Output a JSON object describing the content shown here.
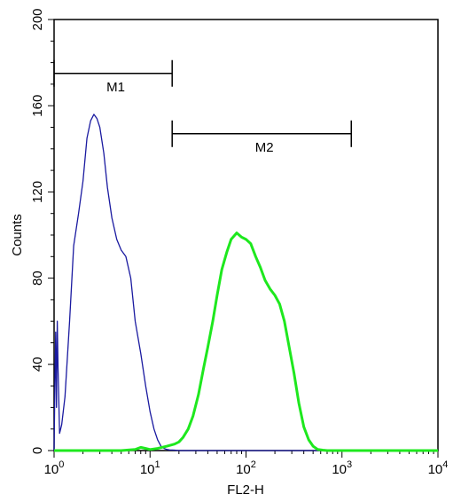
{
  "chart_data": {
    "type": "line",
    "xlabel": "FL2-H",
    "ylabel": "Counts",
    "x_scale": "log",
    "xlim": [
      1,
      10000
    ],
    "ylim": [
      0,
      200
    ],
    "x_ticks": [
      {
        "value": 1,
        "base": "10",
        "exp": "0"
      },
      {
        "value": 10,
        "base": "10",
        "exp": "1"
      },
      {
        "value": 100,
        "base": "10",
        "exp": "2"
      },
      {
        "value": 1000,
        "base": "10",
        "exp": "3"
      },
      {
        "value": 10000,
        "base": "10",
        "exp": "4"
      }
    ],
    "y_ticks": [
      "0",
      "40",
      "80",
      "120",
      "160",
      "200"
    ],
    "grid": false,
    "series": [
      {
        "color": "#1a1aa0",
        "x": [
          1.0,
          1.02,
          1.04,
          1.06,
          1.08,
          1.1,
          1.14,
          1.2,
          1.3,
          1.45,
          1.6,
          1.8,
          2.0,
          2.2,
          2.4,
          2.6,
          2.8,
          3.0,
          3.3,
          3.6,
          4.0,
          4.5,
          5.0,
          5.6,
          6.3,
          7.0,
          8.0,
          9.0,
          10.0,
          11.0,
          12.0,
          13.0,
          14.0,
          15.0,
          16.0,
          18.0,
          20.0,
          25.0,
          35.0,
          100.0,
          1000.0,
          10000.0
        ],
        "y": [
          0,
          30,
          55,
          20,
          60,
          38,
          8,
          12,
          25,
          60,
          95,
          110,
          125,
          145,
          153,
          156,
          154,
          150,
          138,
          122,
          108,
          98,
          93,
          90,
          80,
          60,
          45,
          30,
          18,
          10,
          5,
          2,
          1,
          0.5,
          0.3,
          0.2,
          0,
          0,
          0,
          0,
          0,
          0
        ]
      },
      {
        "color": "#1ee81e",
        "x": [
          1.0,
          5.0,
          7.0,
          8.0,
          9.0,
          10.0,
          12.0,
          15.0,
          18.0,
          20.0,
          22.0,
          25.0,
          28.0,
          32.0,
          36.0,
          40.0,
          45.0,
          50.0,
          56.0,
          63.0,
          70.0,
          80.0,
          90.0,
          100.0,
          112.0,
          126.0,
          141.0,
          158.0,
          178.0,
          200.0,
          224.0,
          251.0,
          282.0,
          316.0,
          355.0,
          400.0,
          450.0,
          500.0,
          560.0,
          630.0,
          700.0,
          800.0,
          1000.0,
          10000.0
        ],
        "y": [
          0,
          0,
          0.5,
          1.5,
          1,
          0.5,
          1,
          2,
          3,
          4,
          6,
          10,
          16,
          26,
          38,
          48,
          60,
          72,
          84,
          92,
          98,
          101,
          99,
          98,
          96,
          90,
          85,
          79,
          75,
          72,
          68,
          60,
          48,
          36,
          22,
          11,
          5,
          2,
          0.5,
          0.2,
          0,
          0,
          0,
          0
        ]
      }
    ],
    "markers": [
      {
        "label": "M1",
        "x_start": 1,
        "x_end": 17,
        "y": 175
      },
      {
        "label": "M2",
        "x_start": 17,
        "x_end": 1250,
        "y": 147
      }
    ]
  }
}
